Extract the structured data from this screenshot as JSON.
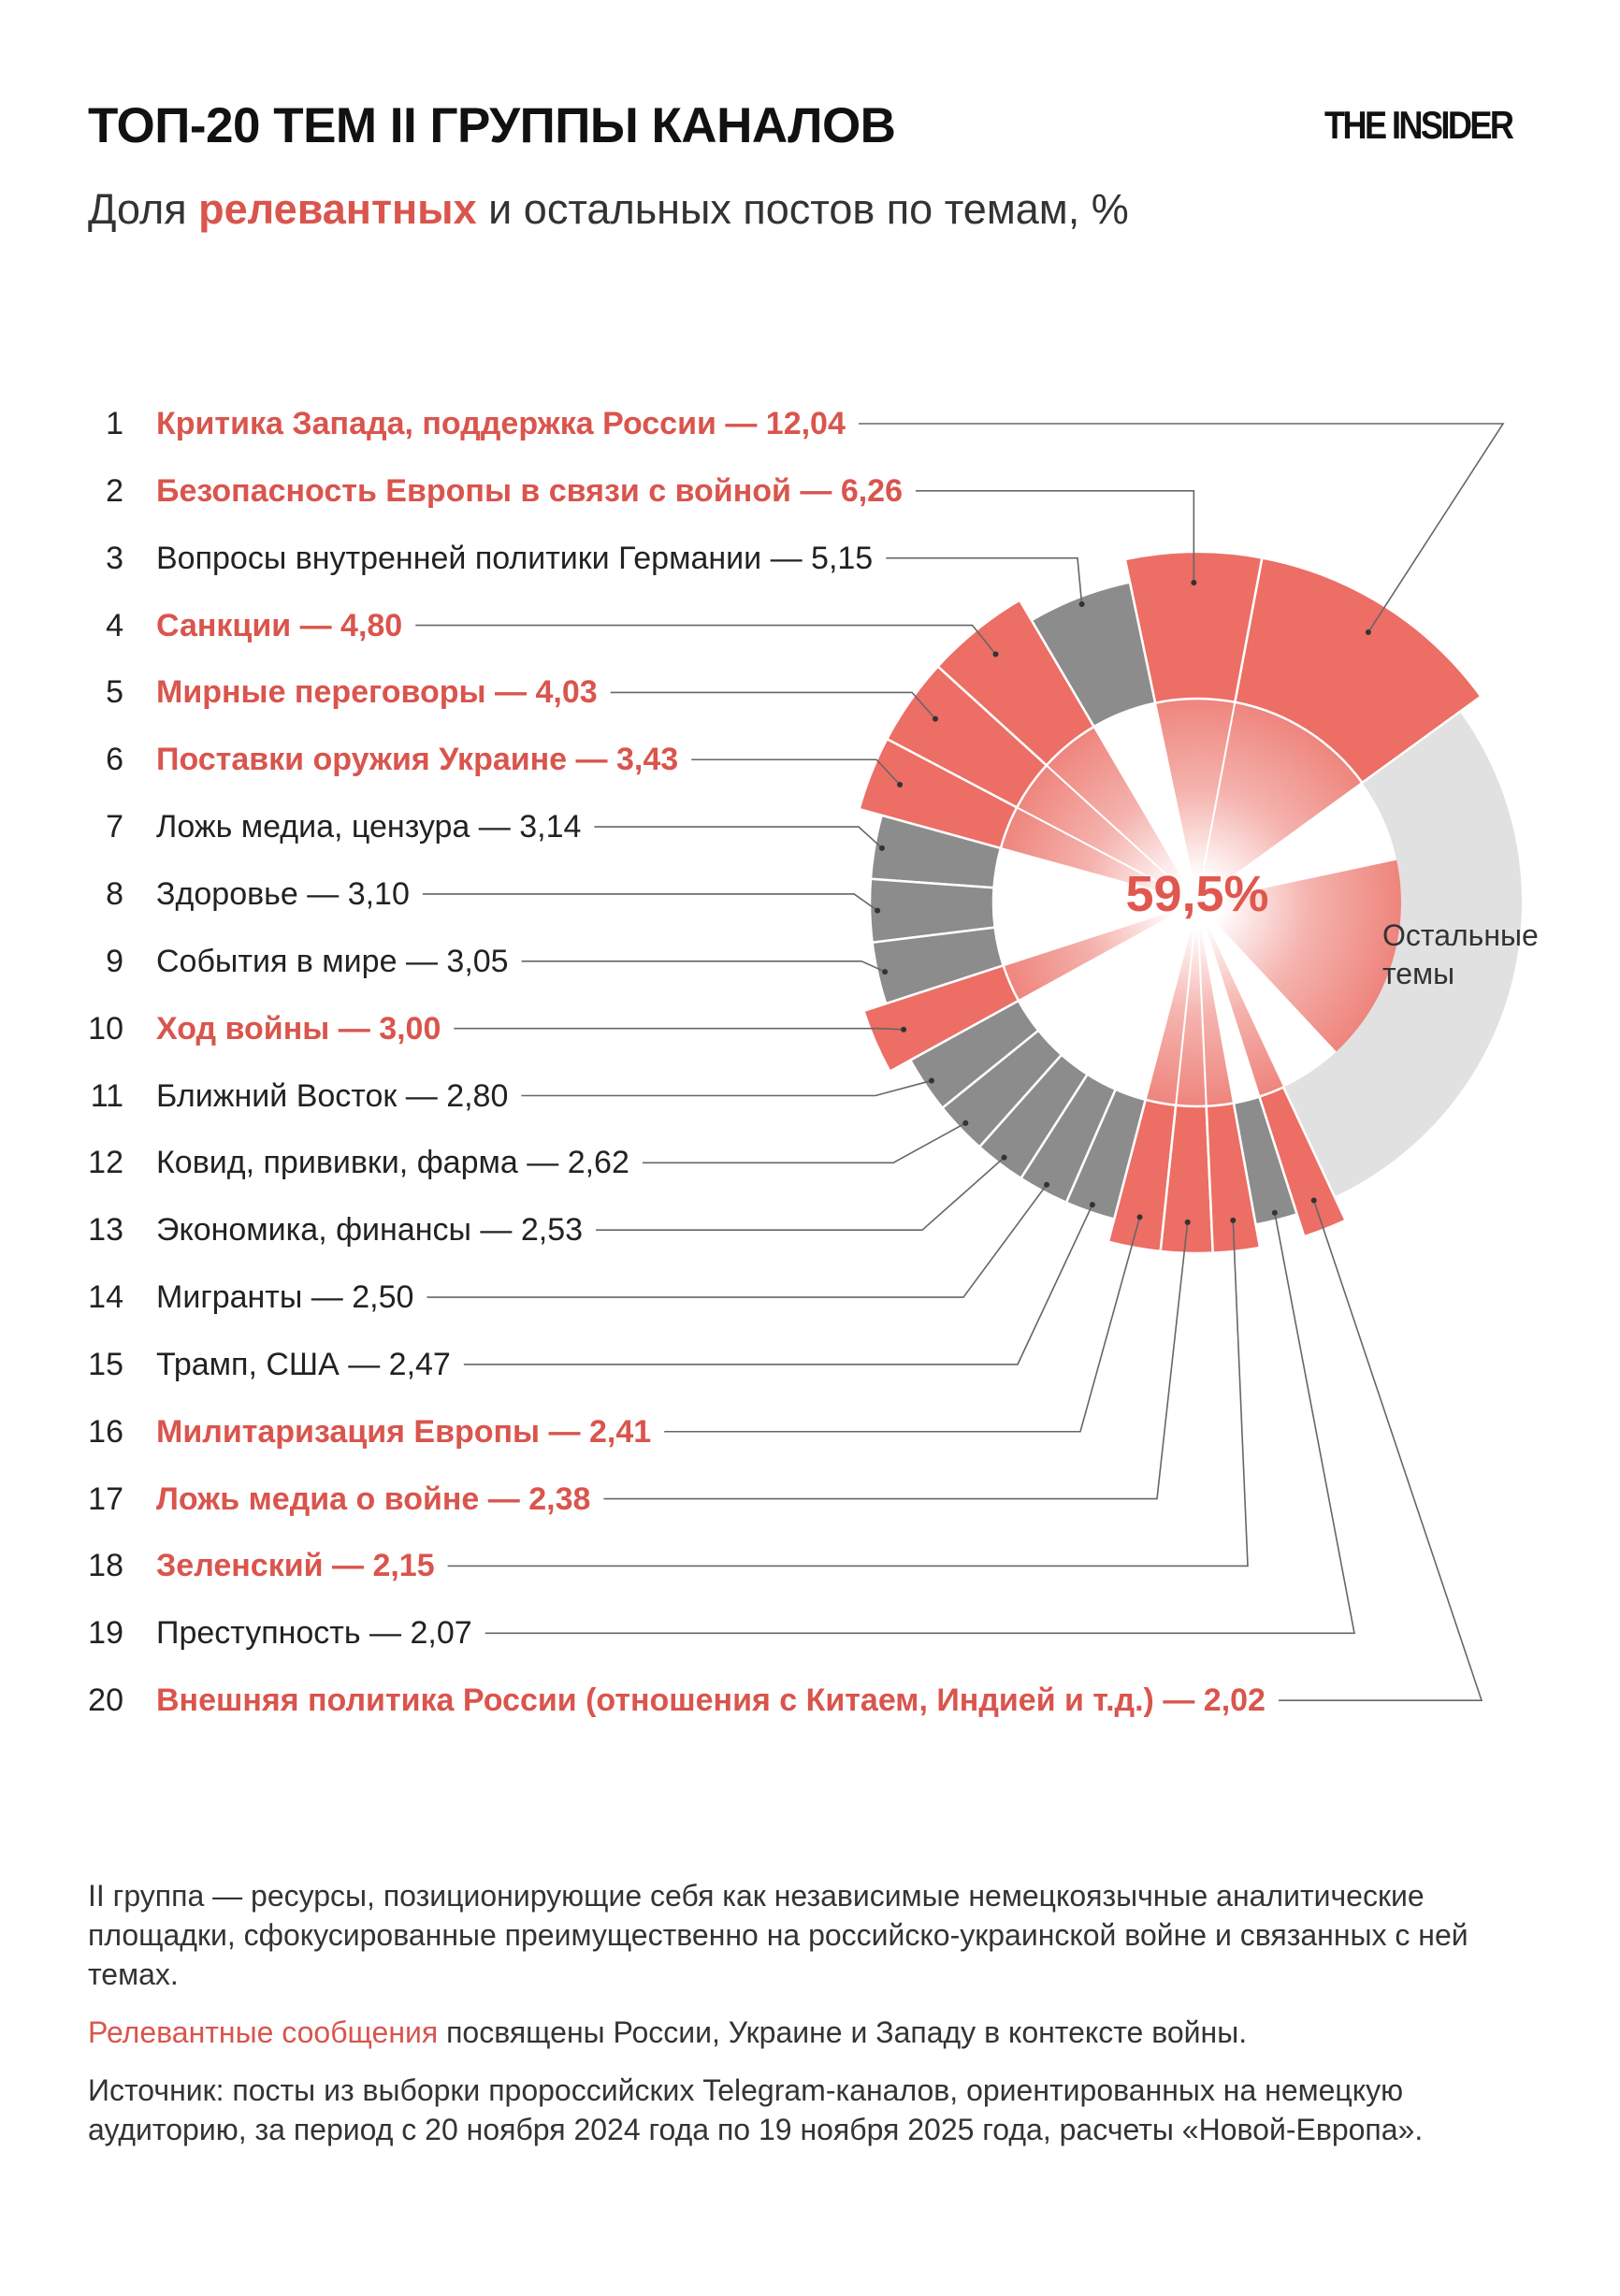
{
  "header": {
    "title": "ТОП-20 ТЕМ II ГРУППЫ КАНАЛОВ",
    "logo": "THE INSIDER",
    "subtitle_pre": "Доля ",
    "subtitle_highlight": "релевантных",
    "subtitle_post": " и остальных постов по темам, %"
  },
  "colors": {
    "relevant": "#ec6e65",
    "relevant_text": "#d9554d",
    "other_topic": "#8c8c8c",
    "rest": "#e1e1e1"
  },
  "chart_data": {
    "type": "pie",
    "variant": "polar-donut (relevant topics drawn with larger radius)",
    "unit": "%",
    "center_label": "59,5%",
    "separator": " — ",
    "items": [
      {
        "rank": "1",
        "label": "Критика Запада, поддержка России",
        "value": 12.04,
        "value_text": "12,04",
        "relevant": true
      },
      {
        "rank": "2",
        "label": "Безопасность Европы в связи с войной",
        "value": 6.26,
        "value_text": "6,26",
        "relevant": true
      },
      {
        "rank": "3",
        "label": "Вопросы внутренней политики Германии",
        "value": 5.15,
        "value_text": "5,15",
        "relevant": false
      },
      {
        "rank": "4",
        "label": "Санкции",
        "value": 4.8,
        "value_text": "4,80",
        "relevant": true
      },
      {
        "rank": "5",
        "label": "Мирные переговоры",
        "value": 4.03,
        "value_text": "4,03",
        "relevant": true
      },
      {
        "rank": "6",
        "label": "Поставки оружия Украине",
        "value": 3.43,
        "value_text": "3,43",
        "relevant": true
      },
      {
        "rank": "7",
        "label": "Ложь медиа, цензура",
        "value": 3.14,
        "value_text": "3,14",
        "relevant": false
      },
      {
        "rank": "8",
        "label": "Здоровье",
        "value": 3.1,
        "value_text": "3,10",
        "relevant": false
      },
      {
        "rank": "9",
        "label": "События в мире",
        "value": 3.05,
        "value_text": "3,05",
        "relevant": false
      },
      {
        "rank": "10",
        "label": "Ход войны",
        "value": 3.0,
        "value_text": "3,00",
        "relevant": true
      },
      {
        "rank": "11",
        "label": "Ближний Восток",
        "value": 2.8,
        "value_text": "2,80",
        "relevant": false
      },
      {
        "rank": "12",
        "label": "Ковид, прививки, фарма",
        "value": 2.62,
        "value_text": "2,62",
        "relevant": false
      },
      {
        "rank": "13",
        "label": "Экономика, финансы",
        "value": 2.53,
        "value_text": "2,53",
        "relevant": false
      },
      {
        "rank": "14",
        "label": "Мигранты",
        "value": 2.5,
        "value_text": "2,50",
        "relevant": false
      },
      {
        "rank": "15",
        "label": "Трамп, США",
        "value": 2.47,
        "value_text": "2,47",
        "relevant": false
      },
      {
        "rank": "16",
        "label": "Милитаризация Европы",
        "value": 2.41,
        "value_text": "2,41",
        "relevant": true
      },
      {
        "rank": "17",
        "label": "Ложь медиа о войне",
        "value": 2.38,
        "value_text": "2,38",
        "relevant": true
      },
      {
        "rank": "18",
        "label": "Зеленский",
        "value": 2.15,
        "value_text": "2,15",
        "relevant": true
      },
      {
        "rank": "19",
        "label": "Преступность",
        "value": 2.07,
        "value_text": "2,07",
        "relevant": false
      },
      {
        "rank": "20",
        "label": "Внешняя политика России (отношения с Китаем, Индией и т.д.)",
        "value": 2.02,
        "value_text": "2,02",
        "relevant": true
      }
    ],
    "others": {
      "label_line1": "Остальные",
      "label_line2": "темы"
    }
  },
  "notes": {
    "group_description": "II группа — ресурсы, позиционирующие себя как независимые немецкоязычные аналитические площадки, сфокусированные преимущественно на российско-украинской войне и связанных с ней темах.",
    "relevant_highlight": "Релевантные сообщения",
    "relevant_rest": " посвящены России, Украине и Западу в контексте войны.",
    "source": "Источник: посты из выборки пророссийских Telegram-каналов, ориентированных на немецкую аудиторию, за период с 20 ноября 2024 года по 19 ноября 2025 года, расчеты «Новой-Европа»."
  }
}
